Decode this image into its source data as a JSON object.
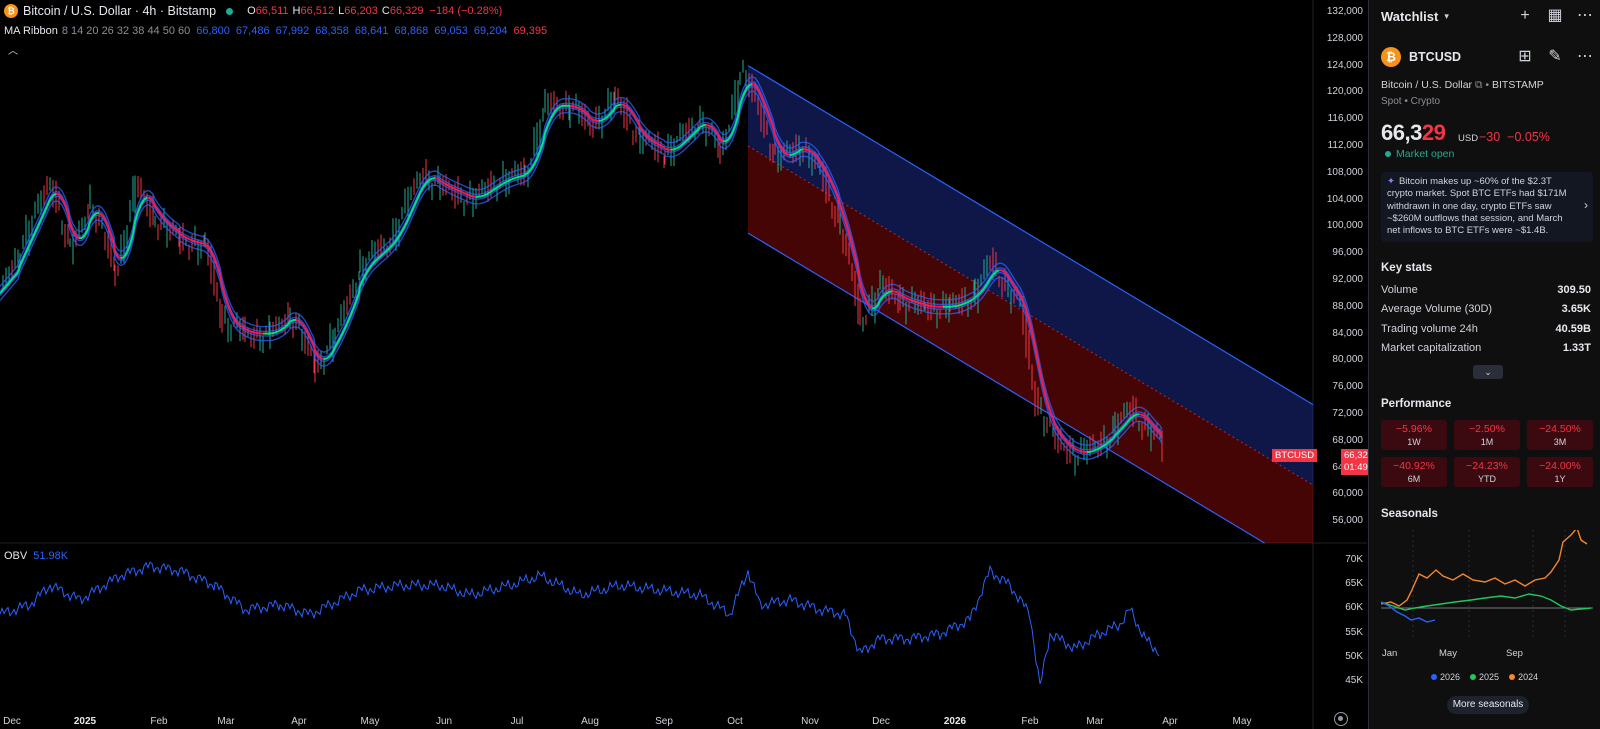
{
  "header": {
    "symbol_title": "Bitcoin / U.S. Dollar · 4h · Bitstamp",
    "open_label": "O",
    "open": "66,511",
    "high_label": "H",
    "high": "66,512",
    "low_label": "L",
    "low": "66,203",
    "close_label": "C",
    "close": "66,329",
    "change": "−184 (−0.28%)",
    "indicator_name": "MA Ribbon",
    "indicator_params": "8 14 20 26 32 38 44 50 60",
    "ma_values": [
      "66,800",
      "67,486",
      "67,992",
      "68,358",
      "68,641",
      "68,868",
      "69,053",
      "69,204",
      "69,395"
    ]
  },
  "price_axis": [
    "132,000",
    "128,000",
    "124,000",
    "120,000",
    "116,000",
    "112,000",
    "108,000",
    "104,000",
    "100,000",
    "96,000",
    "92,000",
    "88,000",
    "84,000",
    "80,000",
    "76,000",
    "72,000",
    "68,000",
    "64,000",
    "60,000",
    "56,000"
  ],
  "current_price": {
    "symbol": "BTCUSD",
    "price": "66,329",
    "countdown": "01:49:54"
  },
  "obv": {
    "label": "OBV",
    "value": "51.98K",
    "axis": [
      "70K",
      "65K",
      "60K",
      "55K",
      "50K",
      "45K"
    ]
  },
  "time_axis": [
    "Dec",
    "2025",
    "Feb",
    "Mar",
    "Apr",
    "May",
    "Jun",
    "Jul",
    "Aug",
    "Sep",
    "Oct",
    "Nov",
    "Dec",
    "2026",
    "Feb",
    "Mar",
    "Apr",
    "May"
  ],
  "colors": {
    "bull": "#22ab94",
    "bear": "#f23645",
    "ma_blue": "#2962ff",
    "accent": "#2962ff",
    "ribbon_green": "#00e676",
    "ribbon_red": "#ff1744"
  },
  "chart_data": {
    "type": "line",
    "title": "Bitcoin / U.S. Dollar · 4h · Bitstamp",
    "x": [
      "Dec",
      "2025",
      "Feb",
      "Mar",
      "Apr",
      "May",
      "Jun",
      "Jul",
      "Aug",
      "Sep",
      "Oct",
      "Nov",
      "Dec",
      "2026",
      "Feb",
      "Mar",
      "Apr"
    ],
    "series": [
      {
        "values": [
          96000,
          98000,
          100000,
          84000,
          79000,
          96000,
          105000,
          118000,
          115000,
          112000,
          122000,
          108000,
          88000,
          92000,
          68000,
          70000,
          66329
        ]
      }
    ],
    "ylim": [
      54000,
      132000
    ],
    "regression_channel": {
      "start": "Oct",
      "upper_start": 124000,
      "lower_start": 99000,
      "slope_per_month": -10000
    }
  },
  "sidebar": {
    "watchlist_title": "Watchlist",
    "symbol": "BTCUSD",
    "description": "Bitcoin / U.S. Dollar",
    "exchange": "BITSTAMP",
    "category": "Spot • Crypto",
    "price_main": "66,3",
    "price_tail": "29",
    "currency": "USD",
    "change": "−30",
    "change_pct": "−0.05%",
    "market_status": "Market open",
    "news": "Bitcoin makes up ~60% of the $2.3T crypto market. Spot BTC ETFs had $171M withdrawn in one day, crypto ETFs saw ~$260M outflows that session, and March net inflows to BTC ETFs were ~$1.4B.",
    "key_stats_title": "Key stats",
    "stats": [
      {
        "k": "Volume",
        "v": "309.50"
      },
      {
        "k": "Average Volume (30D)",
        "v": "3.65K"
      },
      {
        "k": "Trading volume 24h",
        "v": "40.59B"
      },
      {
        "k": "Market capitalization",
        "v": "1.33T"
      }
    ],
    "performance_title": "Performance",
    "performance": [
      {
        "v": "−5.96%",
        "l": "1W"
      },
      {
        "v": "−2.50%",
        "l": "1M"
      },
      {
        "v": "−24.50%",
        "l": "3M"
      },
      {
        "v": "−40.92%",
        "l": "6M"
      },
      {
        "v": "−24.23%",
        "l": "YTD"
      },
      {
        "v": "−24.00%",
        "l": "1Y"
      }
    ],
    "seasonals_title": "Seasonals",
    "seasonals_x": [
      "Jan",
      "May",
      "Sep"
    ],
    "seasonals_legend": [
      {
        "year": "2026",
        "color": "#2962ff"
      },
      {
        "year": "2025",
        "color": "#22c55e"
      },
      {
        "year": "2024",
        "color": "#f5862a"
      }
    ],
    "more_seasonals": "More seasonals"
  }
}
